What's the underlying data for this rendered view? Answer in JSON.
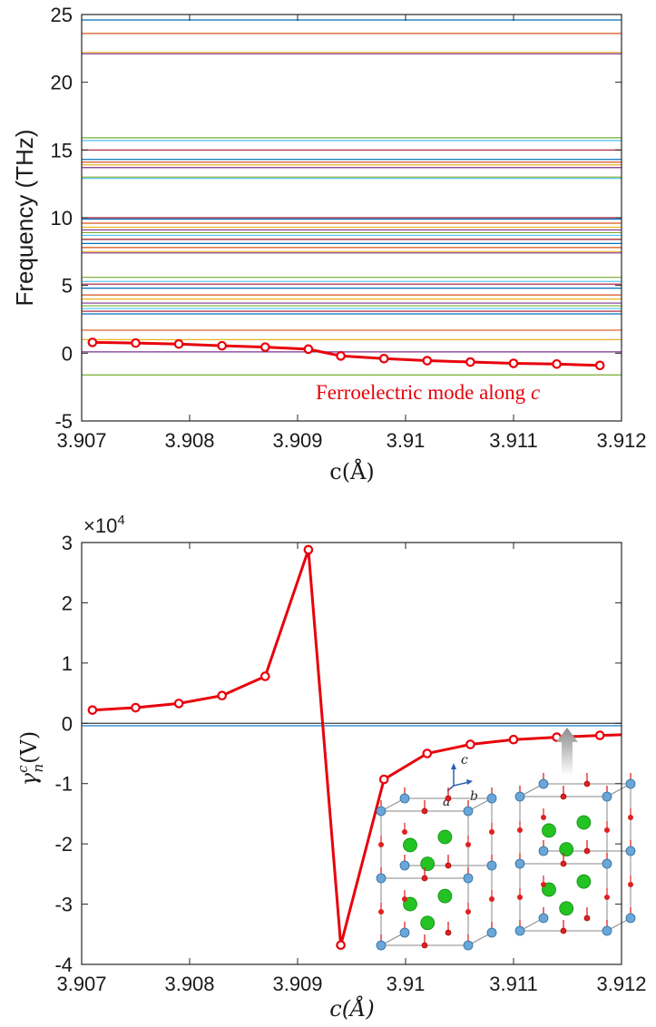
{
  "chart_data": [
    {
      "type": "line",
      "xlabel": "c(Å)",
      "ylabel": "Frequency (THz)",
      "xlim": [
        3.907,
        3.912
      ],
      "ylim": [
        -5,
        25
      ],
      "xticks": [
        "3.907",
        "3.908",
        "3.909",
        "3.91",
        "3.911",
        "3.912"
      ],
      "yticks": [
        "-5",
        "0",
        "5",
        "10",
        "15",
        "20",
        "25"
      ],
      "grid": false,
      "background_modes_THz": [
        24.6,
        23.6,
        22.2,
        22.1,
        15.9,
        15.7,
        15.0,
        14.3,
        14.1,
        13.9,
        13.7,
        13.0,
        12.9,
        10.0,
        9.9,
        9.6,
        9.3,
        9.1,
        8.9,
        8.7,
        8.4,
        8.1,
        7.8,
        7.5,
        7.4,
        5.6,
        5.3,
        5.1,
        4.8,
        4.3,
        4.0,
        3.7,
        3.5,
        3.3,
        3.1,
        2.9,
        1.7,
        1.0,
        0.1,
        -1.6
      ],
      "background_colors": [
        "#0072bd",
        "#d95319",
        "#edb120",
        "#7e2f8e",
        "#77ac30",
        "#4dbeee",
        "#a2142f"
      ],
      "series": [
        {
          "x": [
            3.9071,
            3.9075,
            3.9079,
            3.9083,
            3.9087,
            3.9091,
            3.9094,
            3.9098,
            3.9102,
            3.9106,
            3.911,
            3.9114,
            3.9118
          ],
          "values": [
            0.8,
            0.75,
            0.68,
            0.55,
            0.45,
            0.3,
            -0.2,
            -0.4,
            -0.55,
            -0.65,
            -0.75,
            -0.8,
            -0.9
          ],
          "color": "#e8000b",
          "markers": true
        }
      ],
      "annotations": [
        {
          "text": "Ferroelectric mode along c",
          "color": "#e8000b"
        }
      ]
    },
    {
      "type": "line",
      "xlabel": "c(Å)",
      "ylabel": "γ_n^c(V)",
      "ylabel_main": "γ",
      "ylabel_sup": "c",
      "ylabel_sub": "n",
      "ylabel_tail": "(V)",
      "exponent_label": "×10",
      "exponent_power": "4",
      "xlim": [
        3.907,
        3.912
      ],
      "ylim": [
        -4,
        3
      ],
      "xticks": [
        "3.907",
        "3.908",
        "3.909",
        "3.91",
        "3.911",
        "3.912"
      ],
      "yticks": [
        "-4",
        "-3",
        "-2",
        "-1",
        "0",
        "1",
        "2",
        "3"
      ],
      "grid": false,
      "background_lines": [
        0.0,
        -0.04
      ],
      "series": [
        {
          "x": [
            3.9071,
            3.9075,
            3.9079,
            3.9083,
            3.9087,
            3.9091,
            3.9094,
            3.9098,
            3.9102,
            3.9106,
            3.911,
            3.9114,
            3.9118,
            3.912
          ],
          "values": [
            0.22,
            0.26,
            0.33,
            0.46,
            0.78,
            2.88,
            -3.68,
            -0.93,
            -0.5,
            -0.35,
            -0.27,
            -0.23,
            -0.2,
            -0.19
          ],
          "marker_count": 13,
          "color": "#e8000b",
          "markers": true
        }
      ],
      "inset": {
        "axis_labels": [
          "c",
          "a",
          "b"
        ]
      }
    }
  ]
}
